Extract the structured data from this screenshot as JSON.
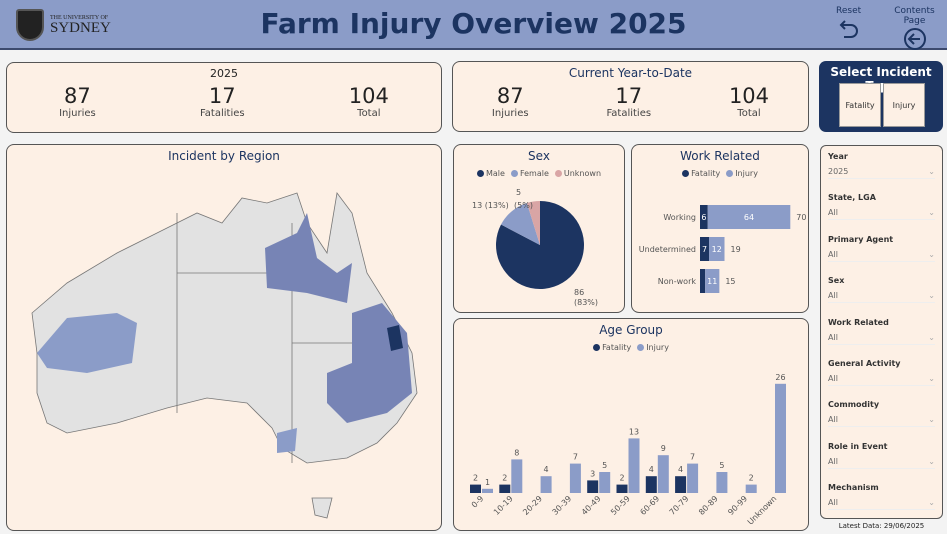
{
  "header": {
    "logo_small": "THE UNIVERSITY OF",
    "logo_big": "SYDNEY",
    "title": "Farm Injury Overview 2025",
    "reset_label": "Reset",
    "contents_label": "Contents Page"
  },
  "kpi_year": {
    "title": "2025",
    "injuries": "87",
    "injuries_label": "Injuries",
    "fatalities": "17",
    "fatalities_label": "Fatalities",
    "total": "104",
    "total_label": "Total"
  },
  "kpi_ytd": {
    "title": "Current Year-to-Date",
    "injuries": "87",
    "injuries_label": "Injuries",
    "fatalities": "17",
    "fatalities_label": "Fatalities",
    "total": "104",
    "total_label": "Total"
  },
  "incident_type": {
    "title": "Select Incident Type",
    "options": [
      "Fatality",
      "Injury"
    ]
  },
  "map": {
    "title": "Incident by Region"
  },
  "colors": {
    "fatality": "#1c3461",
    "injury": "#8b9cc8",
    "unknown": "#d9a5a5",
    "panel": "#fdf0e5",
    "header": "#8b9cc8"
  },
  "chart_data": [
    {
      "type": "pie",
      "title": "Sex",
      "categories": [
        "Male",
        "Female",
        "Unknown"
      ],
      "values": [
        86,
        13,
        5
      ],
      "labels": [
        "86 (83%)",
        "13 (13%)",
        "5 (5%)"
      ]
    },
    {
      "type": "bar",
      "orientation": "horizontal",
      "stacked": true,
      "title": "Work Related",
      "categories": [
        "Working",
        "Undetermined",
        "Non-work"
      ],
      "series": [
        {
          "name": "Fatality",
          "values": [
            6,
            7,
            4
          ]
        },
        {
          "name": "Injury",
          "values": [
            64,
            12,
            11
          ]
        }
      ],
      "totals": [
        70,
        19,
        15
      ]
    },
    {
      "type": "bar",
      "title": "Age Group",
      "categories": [
        "0-9",
        "10-19",
        "20-29",
        "30-39",
        "40-49",
        "50-59",
        "60-69",
        "70-79",
        "80-89",
        "90-99",
        "Unknown"
      ],
      "series": [
        {
          "name": "Fatality",
          "values": [
            2,
            2,
            null,
            null,
            3,
            2,
            4,
            4,
            null,
            null,
            null
          ]
        },
        {
          "name": "Injury",
          "values": [
            1,
            8,
            4,
            7,
            5,
            13,
            9,
            7,
            5,
            2,
            26
          ]
        }
      ]
    }
  ],
  "filters": [
    {
      "label": "Year",
      "value": "2025"
    },
    {
      "label": "State, LGA",
      "value": "All"
    },
    {
      "label": "Primary Agent",
      "value": "All"
    },
    {
      "label": "Sex",
      "value": "All"
    },
    {
      "label": "Work Related",
      "value": "All"
    },
    {
      "label": "General Activity",
      "value": "All"
    },
    {
      "label": "Commodity",
      "value": "All"
    },
    {
      "label": "Role in Event",
      "value": "All"
    },
    {
      "label": "Mechanism",
      "value": "All"
    }
  ],
  "latest": "Latest Data: 29/06/2025"
}
